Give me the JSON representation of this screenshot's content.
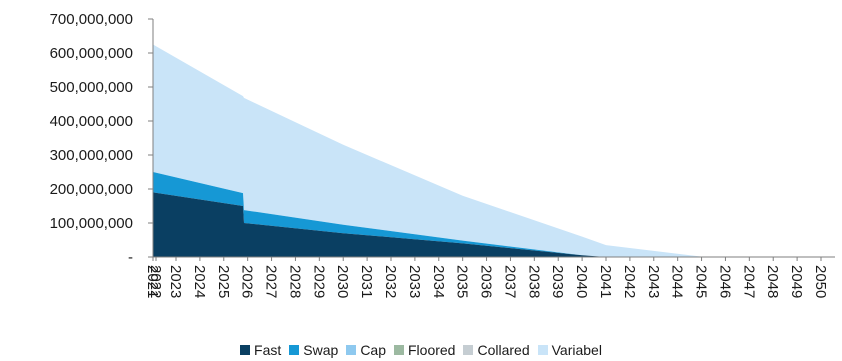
{
  "chart_data": {
    "type": "area",
    "stacked": true,
    "ylim": [
      0,
      700000000
    ],
    "ytick_labels": [
      "-",
      "100,000,000",
      "200,000,000",
      "300,000,000",
      "400,000,000",
      "500,000,000",
      "600,000,000",
      "700,000,000"
    ],
    "yticks": [
      0,
      100000000,
      200000000,
      300000000,
      400000000,
      500000000,
      600000000,
      700000000
    ],
    "categories": [
      "2021",
      "2022",
      "2023",
      "2024",
      "2025",
      "2026",
      "2027",
      "2028",
      "2029",
      "2030",
      "2031",
      "2032",
      "2033",
      "2034",
      "2035",
      "2036",
      "2037",
      "2038",
      "2039",
      "2040",
      "2041",
      "2042",
      "2043",
      "2044",
      "2045",
      "2046",
      "2047",
      "2048",
      "2049",
      "2050"
    ],
    "x_note": "category points, the first two (2021, 2022) overlap at the left edge",
    "points": [
      {
        "x": "2021",
        "fast": 190000000,
        "swap": 60000000,
        "variabel": 375000000
      },
      {
        "x": "2025b",
        "fast": 150000000,
        "swap": 38000000,
        "variabel": 285000000
      },
      {
        "x": "2025c",
        "fast": 100000000,
        "swap": 38000000,
        "variabel": 330000000
      },
      {
        "x": "2030",
        "fast": 70000000,
        "swap": 25000000,
        "variabel": 235000000
      },
      {
        "x": "2035",
        "fast": 40000000,
        "swap": 8000000,
        "variabel": 132000000
      },
      {
        "x": "2040",
        "fast": 5000000,
        "swap": 0,
        "variabel": 55000000
      },
      {
        "x": "2041",
        "fast": 0,
        "swap": 0,
        "variabel": 35000000
      },
      {
        "x": "2045",
        "fast": 0,
        "swap": 0,
        "variabel": 1000000
      },
      {
        "x": "2050",
        "fast": 0,
        "swap": 0,
        "variabel": 0
      }
    ],
    "series": [
      {
        "name": "Fast",
        "color": "#0a3f62"
      },
      {
        "name": "Swap",
        "color": "#1698d5"
      },
      {
        "name": "Cap",
        "color": "#8ec9ef"
      },
      {
        "name": "Floored",
        "color": "#9cb9a1"
      },
      {
        "name": "Collared",
        "color": "#c5cdd2"
      },
      {
        "name": "Variabel",
        "color": "#c9e4f8"
      }
    ],
    "legend_position": "bottom",
    "grid": false
  }
}
